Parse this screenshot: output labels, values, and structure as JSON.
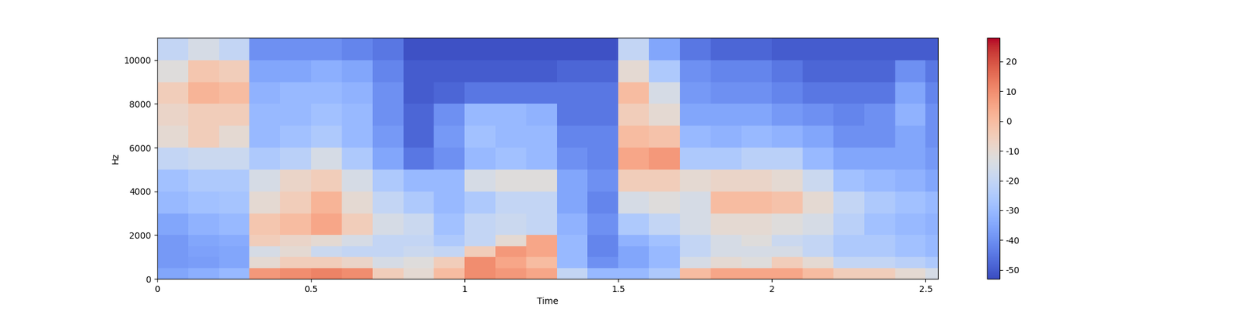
{
  "chart_data": {
    "type": "spectrogram",
    "x_label": "Time",
    "y_label": "Hz",
    "xlim": [
      0,
      2.54
    ],
    "xticks": [
      0,
      0.5,
      1,
      1.5,
      2,
      2.5
    ],
    "ylim": [
      0,
      11025
    ],
    "yticks": [
      0,
      2000,
      4000,
      6000,
      8000,
      10000
    ],
    "x_edges": [
      0,
      0.1,
      0.2,
      0.3,
      0.4,
      0.5,
      0.6,
      0.7,
      0.8,
      0.9,
      1.0,
      1.1,
      1.2,
      1.3,
      1.4,
      1.5,
      1.6,
      1.7,
      1.8,
      1.9,
      2.0,
      2.1,
      2.2,
      2.3,
      2.4,
      2.5,
      2.54
    ],
    "y_edges": [
      0,
      500,
      1000,
      1500,
      2000,
      3000,
      4000,
      5000,
      6000,
      7000,
      8000,
      9000,
      10000,
      11025
    ],
    "cells": [
      [
        -35,
        -38,
        -38,
        -38,
        -35,
        -30,
        -28,
        -20,
        -10,
        -8,
        -5,
        -12,
        -20
      ],
      [
        -33,
        -37,
        -36,
        -35,
        -32,
        -28,
        -25,
        -18,
        -5,
        -5,
        2,
        -3,
        -15
      ],
      [
        -30,
        -35,
        -35,
        -34,
        -30,
        -27,
        -25,
        -18,
        -10,
        -5,
        0,
        -5,
        -20
      ],
      [
        8,
        -10,
        -15,
        -5,
        -3,
        -10,
        -15,
        -25,
        -30,
        -30,
        -32,
        -35,
        -40
      ],
      [
        10,
        -5,
        -10,
        -8,
        0,
        -5,
        -8,
        -22,
        -28,
        -30,
        -30,
        -35,
        -40
      ],
      [
        12,
        -5,
        -18,
        -10,
        5,
        2,
        -5,
        -15,
        -25,
        -28,
        -30,
        -33,
        -40
      ],
      [
        10,
        -8,
        -20,
        -15,
        -5,
        -10,
        -15,
        -25,
        -30,
        -30,
        -32,
        -35,
        -42
      ],
      [
        -5,
        -15,
        -20,
        -20,
        -15,
        -20,
        -25,
        -35,
        -38,
        -40,
        -40,
        -42,
        -45
      ],
      [
        -10,
        -12,
        -18,
        -20,
        -18,
        -25,
        -30,
        -45,
        -48,
        -48,
        -50,
        -50,
        -52
      ],
      [
        0,
        -5,
        -20,
        -25,
        -28,
        -30,
        -30,
        -40,
        -38,
        -40,
        -48,
        -50,
        -52
      ],
      [
        10,
        10,
        -5,
        -20,
        -20,
        -25,
        -15,
        -30,
        -28,
        -30,
        -45,
        -50,
        -52
      ],
      [
        8,
        5,
        8,
        -10,
        -18,
        -20,
        -12,
        -28,
        -30,
        -30,
        -45,
        -50,
        -52
      ],
      [
        5,
        0,
        5,
        5,
        -20,
        -20,
        -12,
        -30,
        -30,
        -32,
        -45,
        -50,
        -52
      ],
      [
        -20,
        -30,
        -30,
        -30,
        -32,
        -35,
        -35,
        -40,
        -42,
        -45,
        -45,
        -48,
        -52
      ],
      [
        -30,
        -40,
        -42,
        -42,
        -40,
        -42,
        -40,
        -42,
        -42,
        -45,
        -45,
        -48,
        -52
      ],
      [
        -30,
        -35,
        -35,
        -32,
        -25,
        -15,
        -5,
        5,
        0,
        -5,
        0,
        -10,
        -20
      ],
      [
        -25,
        -30,
        -30,
        -28,
        -20,
        -12,
        -5,
        8,
        -2,
        -10,
        -15,
        -25,
        -35
      ],
      [
        0,
        -15,
        -20,
        -20,
        -15,
        -15,
        -10,
        -25,
        -30,
        -35,
        -38,
        -40,
        -45
      ],
      [
        5,
        -10,
        -15,
        -15,
        -10,
        0,
        -8,
        -25,
        -32,
        -35,
        -40,
        -42,
        -48
      ],
      [
        5,
        -12,
        -15,
        -12,
        -10,
        0,
        -8,
        -22,
        -30,
        -35,
        -40,
        -42,
        -48
      ],
      [
        5,
        -5,
        -15,
        -18,
        -12,
        -2,
        -10,
        -22,
        -32,
        -38,
        -42,
        -45,
        -50
      ],
      [
        0,
        -10,
        -20,
        -20,
        -15,
        -10,
        -18,
        -30,
        -35,
        -40,
        -45,
        -48,
        -50
      ],
      [
        -5,
        -20,
        -25,
        -25,
        -22,
        -20,
        -28,
        -35,
        -40,
        -42,
        -45,
        -48,
        -50
      ],
      [
        -5,
        -20,
        -25,
        -25,
        -28,
        -25,
        -30,
        -35,
        -40,
        -40,
        -45,
        -48,
        -50
      ],
      [
        -10,
        -22,
        -28,
        -28,
        -30,
        -28,
        -32,
        -35,
        -35,
        -32,
        -35,
        -40,
        -50
      ],
      [
        -15,
        -25,
        -30,
        -30,
        -32,
        -30,
        -35,
        -38,
        -40,
        -40,
        -42,
        -45,
        -50
      ]
    ],
    "colorbar": {
      "range": [
        -53,
        28
      ],
      "ticks": [
        -50,
        -40,
        -30,
        -20,
        -10,
        0,
        10,
        20
      ]
    }
  }
}
